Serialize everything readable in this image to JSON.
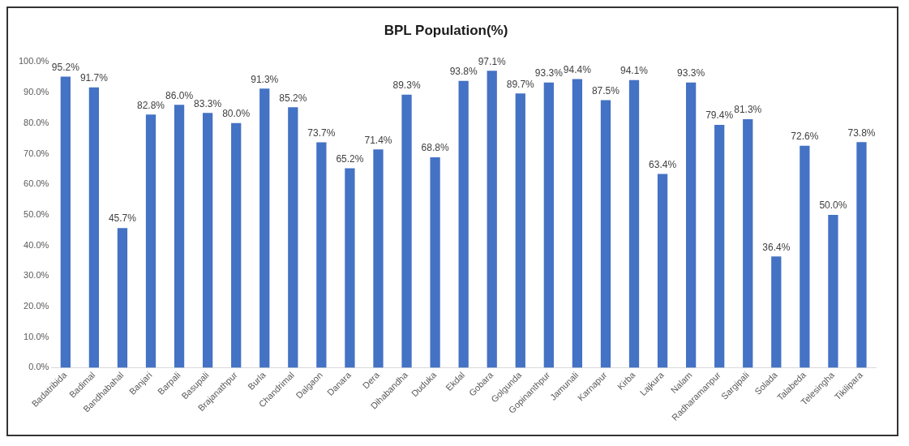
{
  "chart_data": {
    "type": "bar",
    "title": "BPL Population(%)",
    "categories": [
      "Badatribida",
      "Badimal",
      "Bandhabahal",
      "Banjari",
      "Barpali",
      "Basupali",
      "Brajanathpur",
      "Burla",
      "Chandrimal",
      "Dalgaon",
      "Danara",
      "Dera",
      "Dihabandha",
      "Duduka",
      "Ekdal",
      "Gobara",
      "Golgunda",
      "Gopinanthpur",
      "Jamunali",
      "Karnapur",
      "Kirba",
      "Lajkura",
      "Nalam",
      "Radharamanpur",
      "Sargipali",
      "Solada",
      "Talabeda",
      "Telesingha",
      "Tikilipara"
    ],
    "values": [
      95.2,
      91.7,
      45.7,
      82.8,
      86.0,
      83.3,
      80.0,
      91.3,
      85.2,
      73.7,
      65.2,
      71.4,
      89.3,
      68.8,
      93.8,
      97.1,
      89.7,
      93.3,
      94.4,
      87.5,
      94.1,
      63.4,
      93.3,
      79.4,
      81.3,
      36.4,
      72.6,
      50.0,
      73.8
    ],
    "value_labels": [
      "95.2%",
      "91.7%",
      "45.7%",
      "82.8%",
      "86.0%",
      "83.3%",
      "80.0%",
      "91.3%",
      "85.2%",
      "73.7%",
      "65.2%",
      "71.4%",
      "89.3%",
      "68.8%",
      "93.8%",
      "97.1%",
      "89.7%",
      "93.3%",
      "94.4%",
      "87.5%",
      "94.1%",
      "63.4%",
      "93.3%",
      "79.4%",
      "81.3%",
      "36.4%",
      "72.6%",
      "50.0%",
      "73.8%"
    ],
    "color": "#4472c4",
    "ylim": [
      0,
      100
    ],
    "yticks": [
      {
        "value": 0,
        "label": "0.0%"
      },
      {
        "value": 10,
        "label": "10.0%"
      },
      {
        "value": 20,
        "label": "20.0%"
      },
      {
        "value": 30,
        "label": "30.0%"
      },
      {
        "value": 40,
        "label": "40.0%"
      },
      {
        "value": 50,
        "label": "50.0%"
      },
      {
        "value": 60,
        "label": "60.0%"
      },
      {
        "value": 70,
        "label": "70.0%"
      },
      {
        "value": 80,
        "label": "80.0%"
      },
      {
        "value": 90,
        "label": "90.0%"
      },
      {
        "value": 100,
        "label": "100.0%"
      }
    ],
    "grid": false,
    "legend": false
  }
}
